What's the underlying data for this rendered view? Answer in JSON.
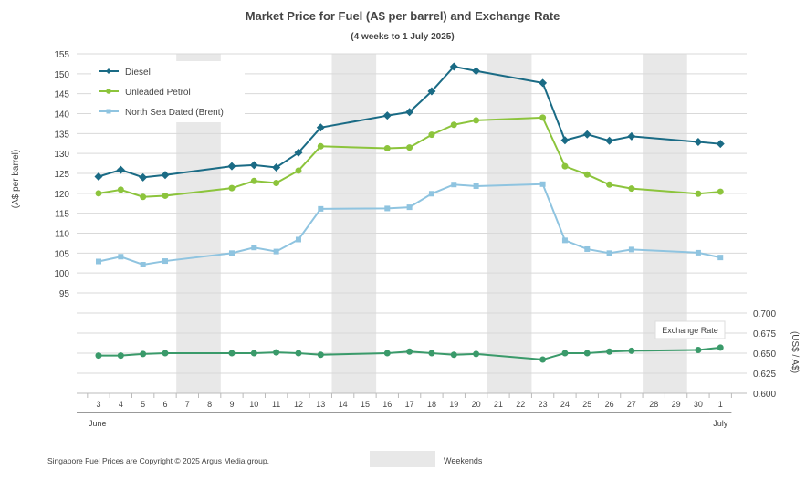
{
  "chart_data": {
    "type": "line",
    "title": "Market Price for Fuel (A$ per barrel) and Exchange Rate",
    "subtitle": "(4 weeks to 1 July 2025)",
    "ylabel": "(A$ per barrel)",
    "ylabel_right": "(US$ / A$)",
    "ylim": [
      95,
      155
    ],
    "yticks": [
      "95",
      "100",
      "105",
      "110",
      "115",
      "120",
      "125",
      "130",
      "135",
      "140",
      "145",
      "150",
      "155"
    ],
    "ylim_right": [
      0.6,
      0.7
    ],
    "yticks_right": [
      "0.600",
      "0.625",
      "0.650",
      "0.675",
      "0.700"
    ],
    "categories": [
      "3",
      "4",
      "5",
      "6",
      "7",
      "8",
      "9",
      "10",
      "11",
      "12",
      "13",
      "14",
      "15",
      "16",
      "17",
      "18",
      "19",
      "20",
      "21",
      "22",
      "23",
      "24",
      "25",
      "26",
      "27",
      "28",
      "29",
      "30",
      "1"
    ],
    "month_labels": [
      {
        "label": "June",
        "at": "3"
      },
      {
        "label": "July",
        "at": "1"
      }
    ],
    "weekends": [
      [
        "7",
        "8"
      ],
      [
        "14",
        "15"
      ],
      [
        "21",
        "22"
      ],
      [
        "28",
        "29"
      ]
    ],
    "weekends_label": "Weekends",
    "exchange_label": "Exchange Rate",
    "source": "Singapore Fuel Prices are Copyright © 2025 Argus Media group.",
    "colors": {
      "diesel": "#1a6b85",
      "petrol": "#8cc43c",
      "brent": "#8fc4e0",
      "fx": "#3a9a6a",
      "weekend": "#e8e8e8",
      "grid": "#d9d9d9"
    },
    "series": [
      {
        "name": "Diesel",
        "marker": "diamond",
        "values": [
          124.2,
          125.9,
          124.0,
          124.6,
          null,
          null,
          126.8,
          127.1,
          126.5,
          130.2,
          136.5,
          null,
          null,
          139.5,
          140.4,
          145.6,
          151.8,
          150.7,
          null,
          null,
          147.7,
          133.3,
          134.8,
          133.2,
          134.3,
          null,
          null,
          132.9,
          132.4
        ]
      },
      {
        "name": "Unleaded Petrol",
        "marker": "circle",
        "values": [
          120.0,
          120.9,
          119.1,
          119.4,
          null,
          null,
          121.3,
          123.1,
          122.6,
          125.7,
          131.8,
          null,
          null,
          131.3,
          131.5,
          134.7,
          137.2,
          138.3,
          null,
          null,
          139.0,
          126.8,
          124.7,
          122.2,
          121.2,
          null,
          null,
          119.9,
          120.4
        ]
      },
      {
        "name": "North Sea Dated (Brent)",
        "marker": "square",
        "values": [
          102.9,
          104.1,
          102.1,
          103.0,
          null,
          null,
          105.0,
          106.4,
          105.4,
          108.4,
          116.1,
          null,
          null,
          116.2,
          116.5,
          119.9,
          122.2,
          121.8,
          null,
          null,
          122.3,
          108.2,
          106.0,
          105.0,
          105.9,
          null,
          null,
          105.1,
          103.9
        ]
      },
      {
        "name": "Exchange Rate",
        "marker": "circle",
        "axis": "right",
        "values": [
          0.647,
          0.647,
          0.649,
          0.65,
          null,
          null,
          0.65,
          0.65,
          0.651,
          0.65,
          0.648,
          null,
          null,
          0.65,
          0.652,
          0.65,
          0.648,
          0.649,
          null,
          null,
          0.642,
          0.65,
          0.65,
          0.652,
          0.653,
          null,
          null,
          0.654,
          0.657
        ]
      }
    ]
  }
}
